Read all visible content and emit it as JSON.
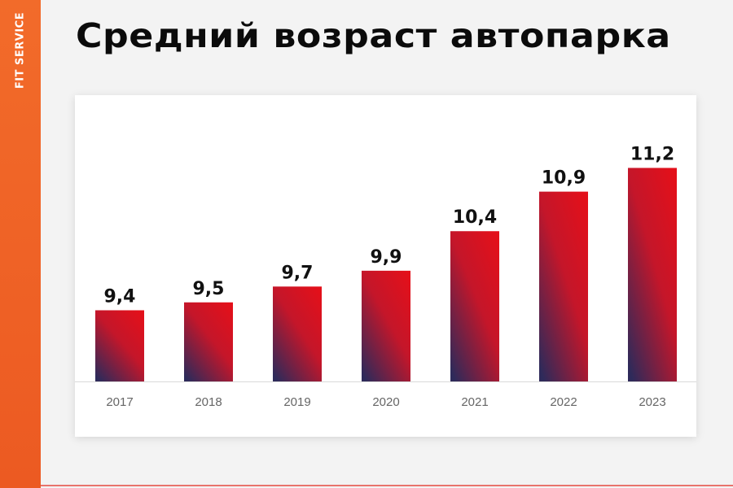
{
  "brand": {
    "text": "FIT SERVICE"
  },
  "page": {
    "title": "Средний возраст автопарка"
  },
  "colors": {
    "strip": "#f26b2a",
    "bar_top": "#e3101a",
    "bar_bottom": "#2e2a5a",
    "axis": "#d9d9d9"
  },
  "chart_data": {
    "type": "bar",
    "title": "",
    "xlabel": "",
    "ylabel": "",
    "categories": [
      "2017",
      "2018",
      "2019",
      "2020",
      "2021",
      "2022",
      "2023"
    ],
    "values": [
      9.4,
      9.5,
      9.7,
      9.9,
      10.4,
      10.9,
      11.2
    ],
    "data_labels": [
      "9,4",
      "9,5",
      "9,7",
      "9,9",
      "10,4",
      "10,9",
      "11,2"
    ],
    "ylim": [
      8.5,
      11.4
    ],
    "grid": false,
    "legend": "none"
  }
}
